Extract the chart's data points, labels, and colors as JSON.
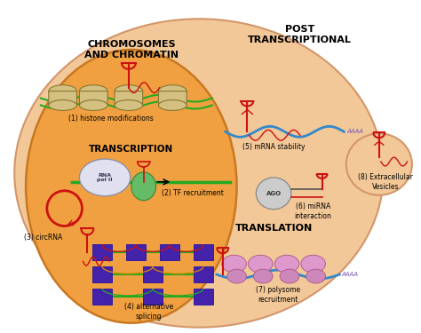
{
  "fig_width": 4.74,
  "fig_height": 3.75,
  "dpi": 100,
  "bg_color": "#FFFFFF",
  "outer_cell_color": "#F2C898",
  "outer_cell_edge": "#D4956A",
  "inner_nucleus_color": "#F0A040",
  "inner_nucleus_edge": "#C87820",
  "nucleus_label": "CHROMOSOMES\nAND CHROMATIN",
  "transcription_label": "TRANSCRIPTION",
  "post_label": "POST\nTRANSCRIPTIONAL",
  "translation_label": "TRANSLATION",
  "green_color": "#22AA22",
  "red_color": "#CC1111",
  "blue_color": "#3388CC",
  "purple_color": "#7755BB",
  "pink_color": "#CC88BB",
  "gray_color": "#BBBBBB",
  "dark_gray": "#555555",
  "nucleosome_face": "#D4C080",
  "nucleosome_edge": "#887730",
  "exon_color": "#4422AA"
}
